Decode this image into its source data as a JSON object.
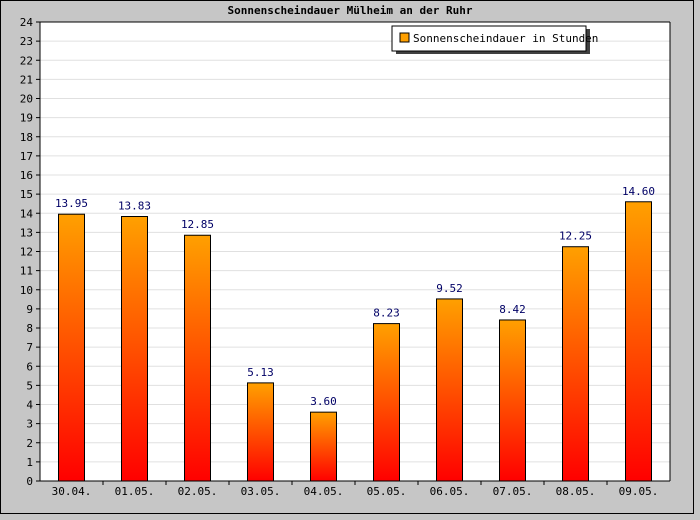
{
  "chart_data": {
    "type": "bar",
    "title": "Sonnenscheindauer Mülheim an der Ruhr",
    "categories": [
      "30.04.",
      "01.05.",
      "02.05.",
      "03.05.",
      "04.05.",
      "05.05.",
      "06.05.",
      "07.05.",
      "08.05.",
      "09.05."
    ],
    "series": [
      {
        "name": "Sonnenscheindauer in Stunden",
        "values": [
          13.95,
          13.83,
          12.85,
          5.13,
          3.6,
          8.23,
          9.52,
          8.42,
          12.25,
          14.6
        ],
        "labels": [
          "13.95",
          "13.83",
          "12.85",
          "5.13",
          "3.60",
          "8.23",
          "9.52",
          "8.42",
          "12.25",
          "14.60"
        ]
      }
    ],
    "ylim": [
      0,
      24
    ],
    "yticks": [
      "0",
      "1",
      "2",
      "3",
      "4",
      "5",
      "6",
      "7",
      "8",
      "9",
      "10",
      "11",
      "12",
      "13",
      "14",
      "15",
      "16",
      "17",
      "18",
      "19",
      "20",
      "21",
      "22",
      "23",
      "24"
    ],
    "grid": true,
    "legend_position": "top-right",
    "colors": {
      "bar_top": "#ffa000",
      "bar_bottom": "#ff0000",
      "bar_border": "#000000",
      "value_label": "#000066",
      "plot_background": "#ffffff",
      "frame_background": "#c6c6c6",
      "grid": "#e0e0e0"
    }
  }
}
